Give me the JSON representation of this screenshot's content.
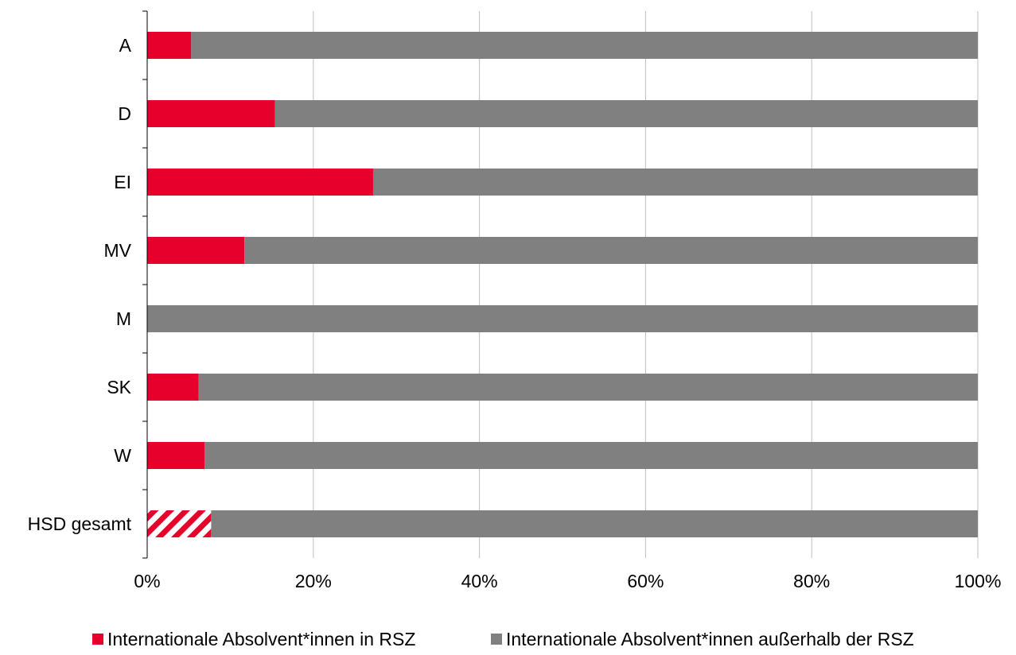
{
  "chart_data": {
    "type": "bar",
    "orientation": "horizontal",
    "stacked": "percent",
    "categories": [
      "A",
      "D",
      "EI",
      "MV",
      "M",
      "SK",
      "W",
      "HSD gesamt"
    ],
    "series": [
      {
        "name": "Internationale Absolvent*innen in RSZ",
        "color": "#E8002D",
        "values": [
          5.3,
          15.4,
          27.2,
          11.7,
          0,
          6.2,
          6.9,
          7.7
        ]
      },
      {
        "name": "Internationale Absolvent*innen außerhalb der RSZ",
        "color": "#808080",
        "values": [
          94.7,
          84.6,
          72.8,
          88.3,
          100,
          93.8,
          93.1,
          92.3
        ]
      }
    ],
    "highlight_category": "HSD gesamt",
    "highlight_pattern": "diagonal-stripes",
    "x_ticks": [
      "0%",
      "20%",
      "40%",
      "60%",
      "80%",
      "100%"
    ],
    "xlim": [
      0,
      100
    ],
    "grid": "vertical",
    "legend_position": "bottom",
    "title": "",
    "xlabel": "",
    "ylabel": ""
  }
}
